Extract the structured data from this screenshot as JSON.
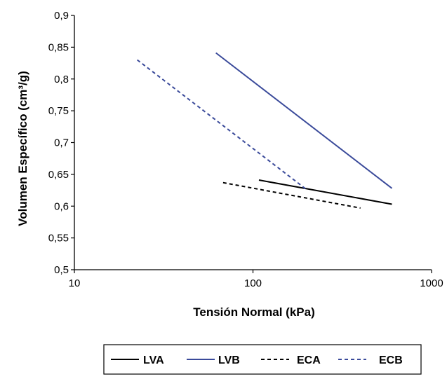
{
  "chart_data": {
    "type": "line",
    "title": "",
    "xlabel": "Tensión Normal (kPa)",
    "ylabel": "Volumen Específico (cm³/g)",
    "xscale": "log",
    "xlim": [
      10,
      1000
    ],
    "ylim": [
      0.5,
      0.9
    ],
    "x_ticks": [
      10,
      100,
      1000
    ],
    "x_tick_labels": [
      "10",
      "100",
      "1000"
    ],
    "y_ticks": [
      0.5,
      0.55,
      0.6,
      0.65,
      0.7,
      0.75,
      0.8,
      0.85,
      0.9
    ],
    "y_tick_labels": [
      "0,5",
      "0,55",
      "0,6",
      "0,65",
      "0,7",
      "0,75",
      "0,8",
      "0,85",
      "0,9"
    ],
    "grid": false,
    "legend_position": "bottom",
    "series": [
      {
        "name": "LVA",
        "color": "#000000",
        "dash": "solid",
        "x": [
          108,
          600
        ],
        "y": [
          0.641,
          0.603
        ]
      },
      {
        "name": "LVB",
        "color": "#3a4a9a",
        "dash": "solid",
        "x": [
          62,
          600
        ],
        "y": [
          0.841,
          0.628
        ]
      },
      {
        "name": "ECA",
        "color": "#000000",
        "dash": "dashed",
        "x": [
          68,
          400
        ],
        "y": [
          0.637,
          0.597
        ]
      },
      {
        "name": "ECB",
        "color": "#3a4a9a",
        "dash": "dashed",
        "x": [
          22.5,
          200
        ],
        "y": [
          0.83,
          0.626
        ]
      }
    ]
  }
}
